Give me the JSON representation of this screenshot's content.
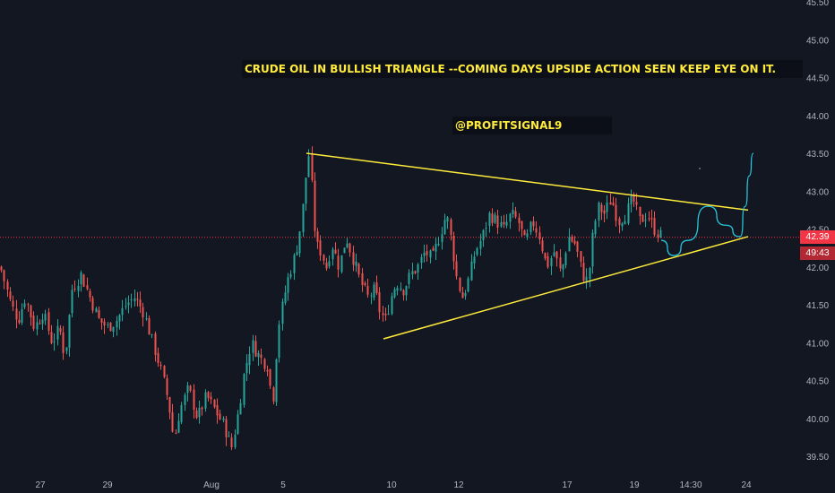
{
  "chart_data": {
    "type": "candlestick",
    "title": "",
    "symbol_hint": "Crude Oil",
    "y_axis": {
      "ticks": [
        "39.50",
        "40.00",
        "40.50",
        "41.00",
        "41.50",
        "42.00",
        "42.50",
        "43.00",
        "43.50",
        "44.00",
        "44.50",
        "45.00",
        "45.50"
      ],
      "range": [
        39.3,
        45.5
      ],
      "side": "right"
    },
    "x_axis": {
      "ticks": [
        "27",
        "29",
        "Aug",
        "5",
        "10",
        "12",
        "17",
        "19",
        "14:30",
        "24"
      ]
    },
    "last_price": "42.39",
    "countdown": "49:43",
    "price_line_value": 42.39,
    "close_path": [
      [
        0,
        42.0
      ],
      [
        12,
        41.5
      ],
      [
        20,
        41.3
      ],
      [
        28,
        41.6
      ],
      [
        38,
        41.2
      ],
      [
        48,
        41.4
      ],
      [
        58,
        41.0
      ],
      [
        66,
        41.2
      ],
      [
        72,
        40.8
      ],
      [
        80,
        41.7
      ],
      [
        90,
        41.9
      ],
      [
        100,
        41.6
      ],
      [
        110,
        41.3
      ],
      [
        120,
        41.2
      ],
      [
        130,
        41.3
      ],
      [
        140,
        41.5
      ],
      [
        150,
        41.6
      ],
      [
        160,
        41.4
      ],
      [
        170,
        41.0
      ],
      [
        180,
        40.6
      ],
      [
        188,
        40.2
      ],
      [
        194,
        39.7
      ],
      [
        200,
        40.1
      ],
      [
        210,
        40.4
      ],
      [
        220,
        40.0
      ],
      [
        230,
        40.3
      ],
      [
        240,
        40.1
      ],
      [
        250,
        39.9
      ],
      [
        258,
        39.6
      ],
      [
        266,
        40.1
      ],
      [
        272,
        40.6
      ],
      [
        280,
        41.0
      ],
      [
        290,
        40.8
      ],
      [
        298,
        40.7
      ],
      [
        304,
        40.2
      ],
      [
        310,
        41.2
      ],
      [
        320,
        41.8
      ],
      [
        330,
        42.2
      ],
      [
        336,
        42.6
      ],
      [
        341,
        43.2
      ],
      [
        344,
        43.5
      ],
      [
        348,
        43.0
      ],
      [
        352,
        42.3
      ],
      [
        358,
        42.2
      ],
      [
        364,
        42.0
      ],
      [
        370,
        42.3
      ],
      [
        378,
        42.0
      ],
      [
        386,
        42.4
      ],
      [
        394,
        42.1
      ],
      [
        402,
        41.8
      ],
      [
        410,
        41.6
      ],
      [
        418,
        41.7
      ],
      [
        424,
        41.4
      ],
      [
        430,
        41.3
      ],
      [
        436,
        41.6
      ],
      [
        442,
        41.8
      ],
      [
        450,
        41.7
      ],
      [
        458,
        41.9
      ],
      [
        466,
        42.0
      ],
      [
        474,
        42.2
      ],
      [
        482,
        42.1
      ],
      [
        490,
        42.4
      ],
      [
        498,
        42.7
      ],
      [
        504,
        42.3
      ],
      [
        510,
        41.8
      ],
      [
        516,
        41.6
      ],
      [
        522,
        41.8
      ],
      [
        530,
        42.2
      ],
      [
        538,
        42.4
      ],
      [
        546,
        42.7
      ],
      [
        554,
        42.6
      ],
      [
        562,
        42.5
      ],
      [
        570,
        42.7
      ],
      [
        578,
        42.6
      ],
      [
        586,
        42.3
      ],
      [
        594,
        42.6
      ],
      [
        602,
        42.4
      ],
      [
        610,
        42.0
      ],
      [
        618,
        42.2
      ],
      [
        626,
        41.9
      ],
      [
        634,
        42.4
      ],
      [
        642,
        42.3
      ],
      [
        650,
        41.9
      ],
      [
        656,
        41.8
      ],
      [
        662,
        42.5
      ],
      [
        668,
        42.8
      ],
      [
        674,
        42.7
      ],
      [
        682,
        42.9
      ],
      [
        690,
        42.6
      ],
      [
        698,
        42.7
      ],
      [
        706,
        42.9
      ],
      [
        714,
        42.6
      ],
      [
        722,
        42.7
      ],
      [
        730,
        42.5
      ],
      [
        738,
        42.4
      ]
    ],
    "trendlines": [
      {
        "name": "triangle-upper",
        "from": [
          342,
          43.5
        ],
        "to": [
          835,
          42.75
        ],
        "color": "#ffeb3b"
      },
      {
        "name": "triangle-lower",
        "from": [
          428,
          41.05
        ],
        "to": [
          835,
          42.4
        ],
        "color": "#ffeb3b"
      }
    ],
    "projection": {
      "color": "#26c6da",
      "points": [
        [
          738,
          42.35
        ],
        [
          752,
          42.15
        ],
        [
          768,
          42.35
        ],
        [
          790,
          42.8
        ],
        [
          810,
          42.55
        ],
        [
          826,
          42.4
        ],
        [
          832,
          42.8
        ],
        [
          836,
          43.2
        ],
        [
          841,
          43.5
        ]
      ]
    },
    "colors": {
      "up": "#26a69a",
      "down": "#ef5350",
      "background": "#131722",
      "axis_text": "#b2b5be",
      "price_line": "#f23645"
    }
  },
  "annotations": {
    "headline": "CRUDE OIL IN BULLISH TRIANGLE --COMING DAYS UPSIDE ACTION SEEN KEEP EYE ON IT.",
    "handle": "@PROFITSIGNAL9"
  }
}
